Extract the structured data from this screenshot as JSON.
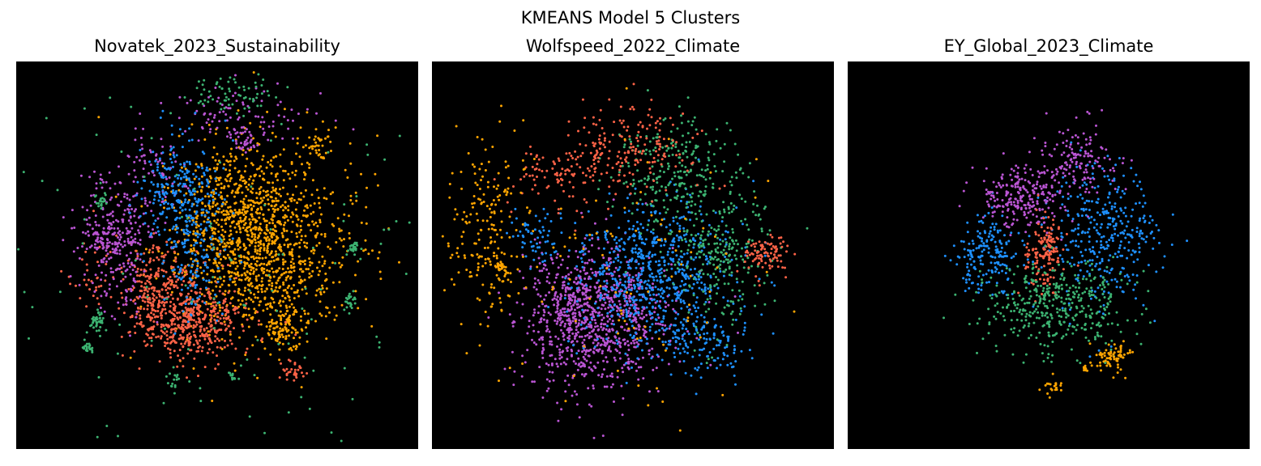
{
  "figure": {
    "title": "KMEANS Model 5 Clusters"
  },
  "chart_data": {
    "type": "scatter",
    "title": "KMEANS Model 5 Clusters",
    "background": "#000000",
    "axes_visible": false,
    "grid": false,
    "legend": "none",
    "cluster_colors": [
      "#ffa500",
      "#ff6347",
      "#3cb371",
      "#1e90ff",
      "#ba55d3"
    ],
    "panels": [
      {
        "title": "Novatek_2023_Sustainability",
        "clusters": [
          {
            "color": "#ffa500",
            "blobs": [
              {
                "cx": 0.6,
                "cy": 0.5,
                "sx": 0.1,
                "sy": 0.1,
                "n": 900
              },
              {
                "cx": 0.56,
                "cy": 0.35,
                "sx": 0.08,
                "sy": 0.08,
                "n": 300
              },
              {
                "cx": 0.67,
                "cy": 0.69,
                "sx": 0.025,
                "sy": 0.025,
                "n": 90
              },
              {
                "cx": 0.75,
                "cy": 0.21,
                "sx": 0.02,
                "sy": 0.02,
                "n": 35
              },
              {
                "cx": 0.65,
                "cy": 0.45,
                "sx": 0.15,
                "sy": 0.13,
                "n": 200
              }
            ]
          },
          {
            "color": "#ff6347",
            "blobs": [
              {
                "cx": 0.43,
                "cy": 0.67,
                "sx": 0.07,
                "sy": 0.05,
                "n": 500
              },
              {
                "cx": 0.35,
                "cy": 0.57,
                "sx": 0.05,
                "sy": 0.06,
                "n": 200
              },
              {
                "cx": 0.69,
                "cy": 0.8,
                "sx": 0.02,
                "sy": 0.015,
                "n": 30
              },
              {
                "cx": 0.18,
                "cy": 0.55,
                "sx": 0.03,
                "sy": 0.04,
                "n": 30
              }
            ]
          },
          {
            "color": "#ba55d3",
            "blobs": [
              {
                "cx": 0.25,
                "cy": 0.45,
                "sx": 0.05,
                "sy": 0.09,
                "n": 280
              },
              {
                "cx": 0.55,
                "cy": 0.14,
                "sx": 0.1,
                "sy": 0.04,
                "n": 100
              },
              {
                "cx": 0.57,
                "cy": 0.21,
                "sx": 0.015,
                "sy": 0.012,
                "n": 25
              },
              {
                "cx": 0.22,
                "cy": 0.46,
                "sx": 0.015,
                "sy": 0.015,
                "n": 35
              },
              {
                "cx": 0.35,
                "cy": 0.3,
                "sx": 0.04,
                "sy": 0.05,
                "n": 60
              }
            ]
          },
          {
            "color": "#1e90ff",
            "blobs": [
              {
                "cx": 0.4,
                "cy": 0.34,
                "sx": 0.05,
                "sy": 0.06,
                "n": 250
              },
              {
                "cx": 0.45,
                "cy": 0.5,
                "sx": 0.04,
                "sy": 0.08,
                "n": 150
              }
            ]
          },
          {
            "color": "#3cb371",
            "blobs": [
              {
                "cx": 0.2,
                "cy": 0.67,
                "sx": 0.012,
                "sy": 0.015,
                "n": 40
              },
              {
                "cx": 0.18,
                "cy": 0.74,
                "sx": 0.008,
                "sy": 0.01,
                "n": 20
              },
              {
                "cx": 0.84,
                "cy": 0.48,
                "sx": 0.008,
                "sy": 0.01,
                "n": 25
              },
              {
                "cx": 0.83,
                "cy": 0.62,
                "sx": 0.008,
                "sy": 0.01,
                "n": 25
              },
              {
                "cx": 0.21,
                "cy": 0.36,
                "sx": 0.008,
                "sy": 0.01,
                "n": 20
              },
              {
                "cx": 0.39,
                "cy": 0.83,
                "sx": 0.008,
                "sy": 0.01,
                "n": 15
              },
              {
                "cx": 0.55,
                "cy": 0.08,
                "sx": 0.06,
                "sy": 0.025,
                "n": 60
              },
              {
                "cx": 0.54,
                "cy": 0.81,
                "sx": 0.006,
                "sy": 0.008,
                "n": 12
              },
              {
                "cx": 0.5,
                "cy": 0.5,
                "sx": 0.38,
                "sy": 0.38,
                "n": 200
              }
            ]
          }
        ]
      },
      {
        "title": "Wolfspeed_2022_Climate",
        "clusters": [
          {
            "color": "#ba55d3",
            "blobs": [
              {
                "cx": 0.42,
                "cy": 0.65,
                "sx": 0.09,
                "sy": 0.08,
                "n": 700
              },
              {
                "cx": 0.35,
                "cy": 0.7,
                "sx": 0.06,
                "sy": 0.1,
                "n": 250
              }
            ]
          },
          {
            "color": "#1e90ff",
            "blobs": [
              {
                "cx": 0.55,
                "cy": 0.55,
                "sx": 0.1,
                "sy": 0.1,
                "n": 700
              },
              {
                "cx": 0.68,
                "cy": 0.72,
                "sx": 0.06,
                "sy": 0.05,
                "n": 120
              },
              {
                "cx": 0.26,
                "cy": 0.46,
                "sx": 0.03,
                "sy": 0.04,
                "n": 60
              }
            ]
          },
          {
            "color": "#3cb371",
            "blobs": [
              {
                "cx": 0.6,
                "cy": 0.28,
                "sx": 0.07,
                "sy": 0.07,
                "n": 250
              },
              {
                "cx": 0.72,
                "cy": 0.5,
                "sx": 0.06,
                "sy": 0.1,
                "n": 250
              }
            ]
          },
          {
            "color": "#ff6347",
            "blobs": [
              {
                "cx": 0.48,
                "cy": 0.22,
                "sx": 0.08,
                "sy": 0.06,
                "n": 200
              },
              {
                "cx": 0.83,
                "cy": 0.5,
                "sx": 0.03,
                "sy": 0.025,
                "n": 90
              },
              {
                "cx": 0.3,
                "cy": 0.3,
                "sx": 0.05,
                "sy": 0.04,
                "n": 80
              }
            ]
          },
          {
            "color": "#ffa500",
            "blobs": [
              {
                "cx": 0.14,
                "cy": 0.42,
                "sx": 0.05,
                "sy": 0.12,
                "n": 200
              },
              {
                "cx": 0.17,
                "cy": 0.53,
                "sx": 0.007,
                "sy": 0.008,
                "n": 30
              },
              {
                "cx": 0.5,
                "cy": 0.55,
                "sx": 0.18,
                "sy": 0.16,
                "n": 100
              }
            ]
          }
        ]
      },
      {
        "title": "EY_Global_2023_Climate",
        "clusters": [
          {
            "color": "#1e90ff",
            "blobs": [
              {
                "cx": 0.35,
                "cy": 0.5,
                "sx": 0.04,
                "sy": 0.05,
                "n": 180
              },
              {
                "cx": 0.64,
                "cy": 0.45,
                "sx": 0.07,
                "sy": 0.09,
                "n": 350
              }
            ]
          },
          {
            "color": "#ba55d3",
            "blobs": [
              {
                "cx": 0.42,
                "cy": 0.35,
                "sx": 0.05,
                "sy": 0.04,
                "n": 220
              },
              {
                "cx": 0.57,
                "cy": 0.26,
                "sx": 0.05,
                "sy": 0.05,
                "n": 150
              }
            ]
          },
          {
            "color": "#ff6347",
            "blobs": [
              {
                "cx": 0.49,
                "cy": 0.49,
                "sx": 0.025,
                "sy": 0.05,
                "n": 150
              }
            ]
          },
          {
            "color": "#3cb371",
            "blobs": [
              {
                "cx": 0.52,
                "cy": 0.63,
                "sx": 0.09,
                "sy": 0.06,
                "n": 400
              }
            ]
          },
          {
            "color": "#ffa500",
            "blobs": [
              {
                "cx": 0.66,
                "cy": 0.76,
                "sx": 0.025,
                "sy": 0.02,
                "n": 70
              },
              {
                "cx": 0.51,
                "cy": 0.84,
                "sx": 0.015,
                "sy": 0.01,
                "n": 20
              },
              {
                "cx": 0.59,
                "cy": 0.79,
                "sx": 0.005,
                "sy": 0.005,
                "n": 10
              }
            ]
          }
        ]
      }
    ]
  }
}
